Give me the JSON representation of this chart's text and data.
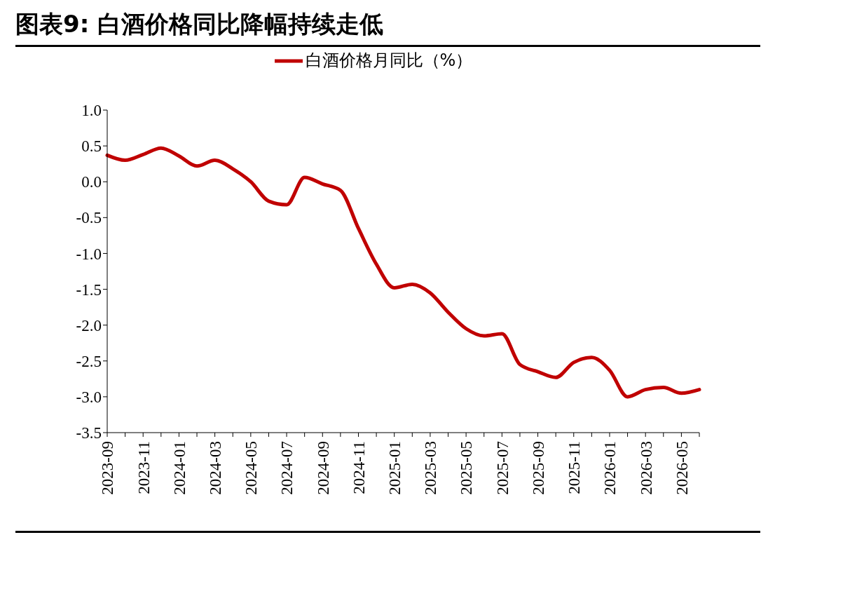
{
  "chart_data": {
    "type": "line",
    "title": "图表9: 白酒价格同比降幅持续走低",
    "categories": [
      "2023-09",
      null,
      "2023-11",
      null,
      "2024-01",
      null,
      "2024-03",
      null,
      "2024-05",
      null,
      "2024-07",
      null,
      "2024-09",
      null,
      "2024-11",
      null,
      "2025-01",
      null,
      "2025-03",
      null,
      "2025-05",
      null,
      "2025-07",
      null,
      "2025-09",
      null,
      "2025-11",
      null,
      "2026-01",
      null,
      "2026-03",
      null,
      "2026-05",
      null
    ],
    "series": [
      {
        "name": "白酒价格月同比（%）",
        "color": "#c00000",
        "values": [
          0.37,
          0.3,
          0.38,
          0.47,
          0.36,
          0.22,
          0.3,
          0.18,
          0.0,
          -0.27,
          -0.32,
          0.06,
          -0.03,
          -0.12,
          -0.65,
          -1.15,
          -1.48,
          -1.43,
          -1.55,
          -1.82,
          -2.05,
          -2.15,
          -2.12,
          -2.55,
          -2.65,
          -2.73,
          -2.52,
          -2.45,
          -2.63,
          -3.0,
          -2.9,
          -2.87,
          -2.95,
          -2.9
        ]
      }
    ],
    "ylim": [
      -3.5,
      1.0
    ],
    "yticks": [
      {
        "value": -3.5,
        "label": "-3.5"
      },
      {
        "value": -3,
        "label": "-3.0"
      },
      {
        "value": -2.5,
        "label": "-2.5"
      },
      {
        "value": -2,
        "label": "-2.0"
      },
      {
        "value": -1.5,
        "label": "-1.5"
      },
      {
        "value": -1,
        "label": "-1.0"
      },
      {
        "value": -0.5,
        "label": "-0.5"
      },
      {
        "value": 0,
        "label": "0.0"
      },
      {
        "value": 0.5,
        "label": "0.5"
      },
      {
        "value": 1,
        "label": "1.0"
      }
    ],
    "grid": false,
    "legend": "top",
    "marker": "none",
    "line_style": "solid"
  }
}
